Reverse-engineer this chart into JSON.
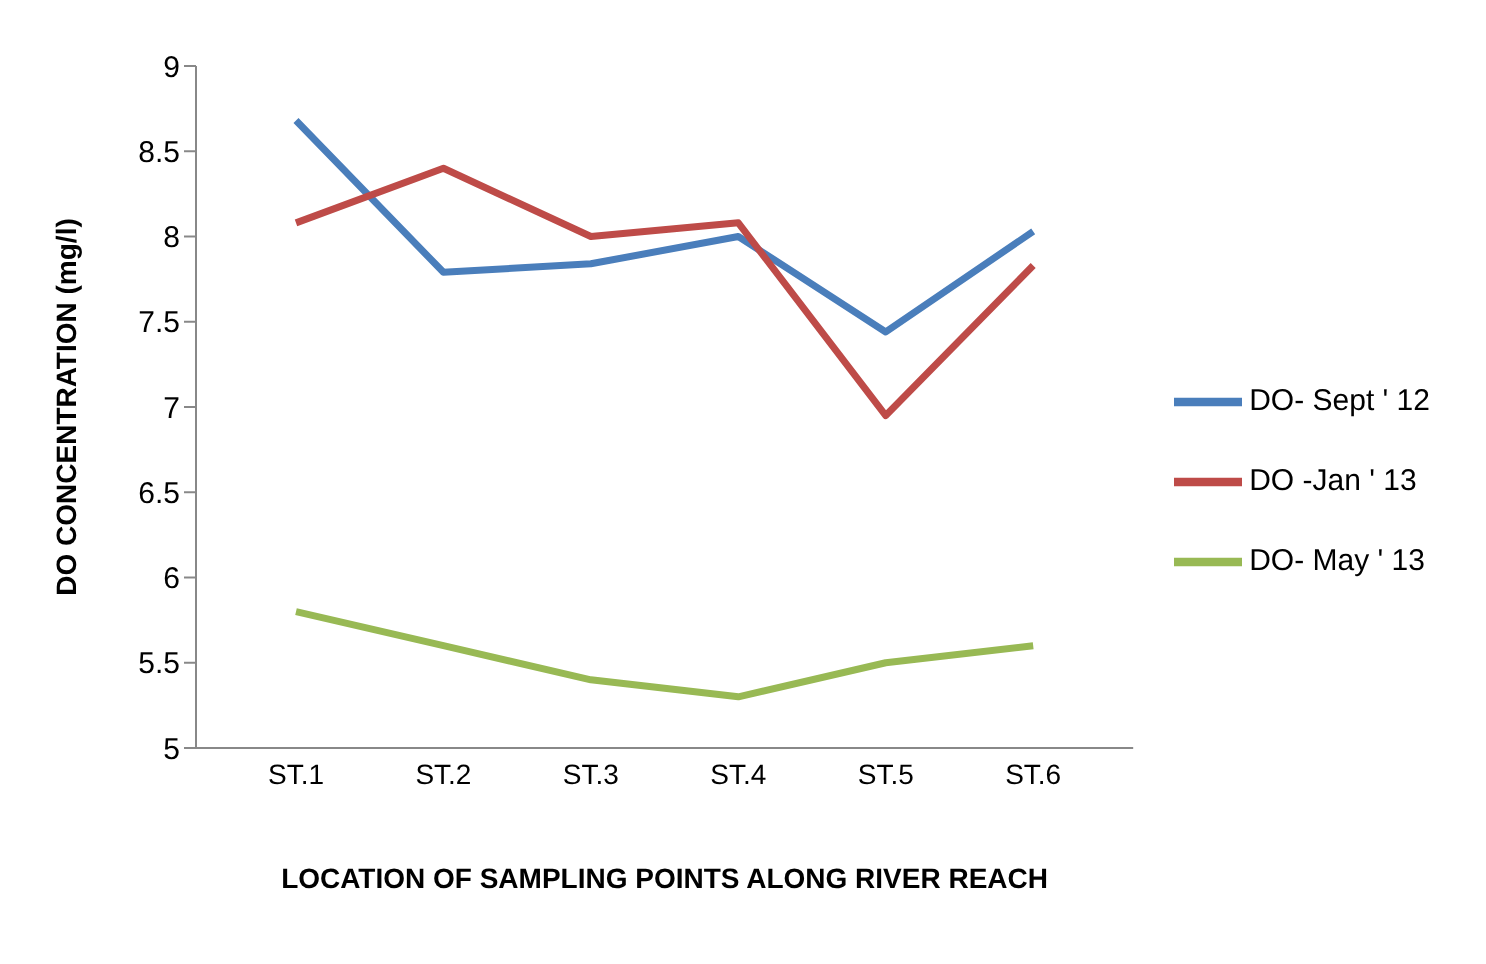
{
  "chart_data": {
    "type": "line",
    "xlabel": "LOCATION  OF SAMPLING POINTS ALONG RIVER REACH",
    "ylabel": "DO CONCENTRATION  (mg/l)",
    "categories": [
      "ST.1",
      "ST.2",
      "ST.3",
      "ST.4",
      "ST.5",
      "ST.6"
    ],
    "series": [
      {
        "name": "DO- Sept ' 12",
        "color": "#4a7ebb",
        "values": [
          8.68,
          7.79,
          7.84,
          8.0,
          7.44,
          8.03
        ]
      },
      {
        "name": "DO -Jan ' 13",
        "color": "#be4b48",
        "values": [
          8.08,
          8.4,
          8.0,
          8.08,
          6.95,
          7.83
        ]
      },
      {
        "name": "DO- May ' 13",
        "color": "#98b954",
        "values": [
          5.8,
          5.6,
          5.4,
          5.3,
          5.5,
          5.6
        ]
      }
    ],
    "ylim": [
      5,
      9
    ],
    "yticks": [
      5,
      5.5,
      6,
      6.5,
      7,
      7.5,
      8,
      8.5,
      9
    ],
    "grid": false,
    "legend": "right",
    "marker": "none",
    "line_style": "solid"
  }
}
